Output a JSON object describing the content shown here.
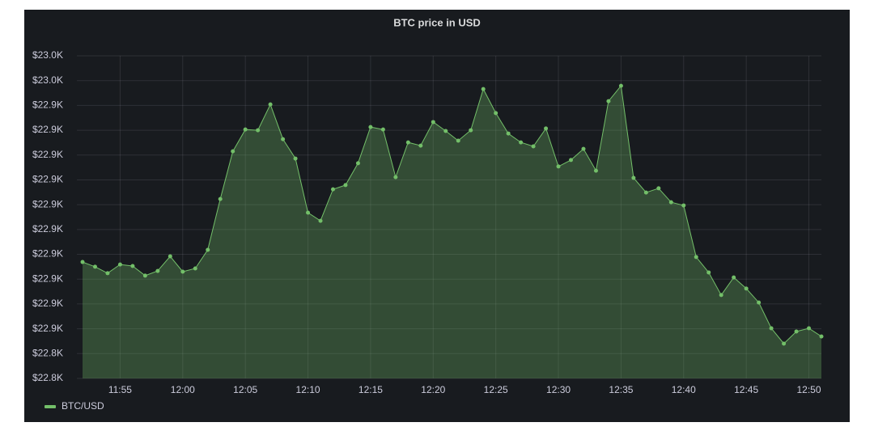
{
  "chart_data": {
    "type": "line",
    "fill": true,
    "title": "BTC price in USD",
    "categories": [
      null,
      null,
      null,
      "11:55",
      null,
      null,
      null,
      null,
      "12:00",
      null,
      null,
      null,
      null,
      "12:05",
      null,
      null,
      null,
      null,
      "12:10",
      null,
      null,
      null,
      null,
      "12:15",
      null,
      null,
      null,
      null,
      "12:20",
      null,
      null,
      null,
      null,
      "12:25",
      null,
      null,
      null,
      null,
      "12:30",
      null,
      null,
      null,
      null,
      "12:35",
      null,
      null,
      null,
      null,
      "12:40",
      null,
      null,
      null,
      null,
      "12:45",
      null,
      null,
      null,
      null,
      "12:50",
      null
    ],
    "series": [
      {
        "name": "BTC/USD",
        "color": "#73bf69",
        "values": [
          22876.9,
          22875.0,
          22872.4,
          22875.9,
          22875.3,
          22871.4,
          22873.3,
          22879.2,
          22873.0,
          22874.3,
          22881.8,
          22902.3,
          22921.5,
          22930.3,
          22930.0,
          22940.4,
          22926.4,
          22918.6,
          22896.8,
          22893.5,
          22906.2,
          22907.9,
          22916.7,
          22931.3,
          22930.3,
          22911.1,
          22925.1,
          22923.8,
          22933.3,
          22929.7,
          22925.8,
          22930.0,
          22946.6,
          22936.9,
          22928.7,
          22925.1,
          22923.5,
          22930.7,
          22915.4,
          22918.0,
          22922.5,
          22913.7,
          22941.7,
          22947.9,
          22910.8,
          22904.9,
          22906.6,
          22901.0,
          22899.7,
          22878.9,
          22872.7,
          22863.6,
          22870.7,
          22866.2,
          22860.6,
          22850.2,
          22844.0,
          22848.9,
          22850.2,
          22846.9
        ]
      }
    ],
    "ylim": [
      22830,
      22960
    ],
    "yticks": [
      {
        "value": 22830,
        "label": "$22.8K"
      },
      {
        "value": 22840,
        "label": "$22.8K"
      },
      {
        "value": 22850,
        "label": "$22.9K"
      },
      {
        "value": 22860,
        "label": "$22.9K"
      },
      {
        "value": 22870,
        "label": "$22.9K"
      },
      {
        "value": 22880,
        "label": "$22.9K"
      },
      {
        "value": 22890,
        "label": "$22.9K"
      },
      {
        "value": 22900,
        "label": "$22.9K"
      },
      {
        "value": 22910,
        "label": "$22.9K"
      },
      {
        "value": 22920,
        "label": "$22.9K"
      },
      {
        "value": 22930,
        "label": "$22.9K"
      },
      {
        "value": 22940,
        "label": "$22.9K"
      },
      {
        "value": 22950,
        "label": "$23.0K"
      },
      {
        "value": 22960,
        "label": "$23.0K"
      }
    ],
    "grid": true,
    "legend": "bottom-left"
  }
}
